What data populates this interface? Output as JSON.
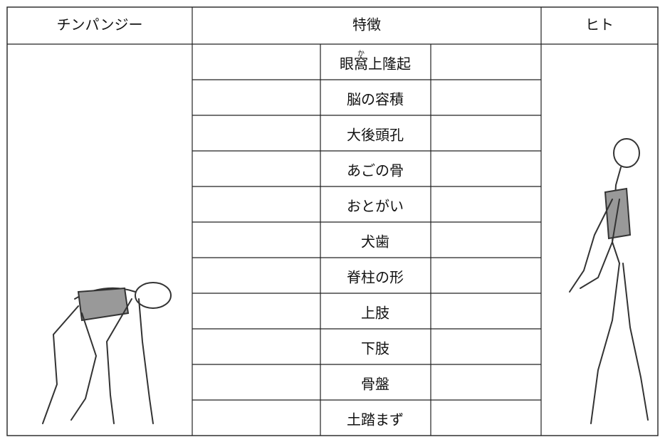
{
  "header": {
    "left": "チンパンジー",
    "center": "特徴",
    "right": "ヒト"
  },
  "furigana": "か",
  "features": [
    "眼窩上隆起",
    "脳の容積",
    "大後頭孔",
    "あごの骨",
    "おとがい",
    "犬歯",
    "脊柱の形",
    "上肢",
    "下肢",
    "骨盤",
    "土踏まず"
  ]
}
